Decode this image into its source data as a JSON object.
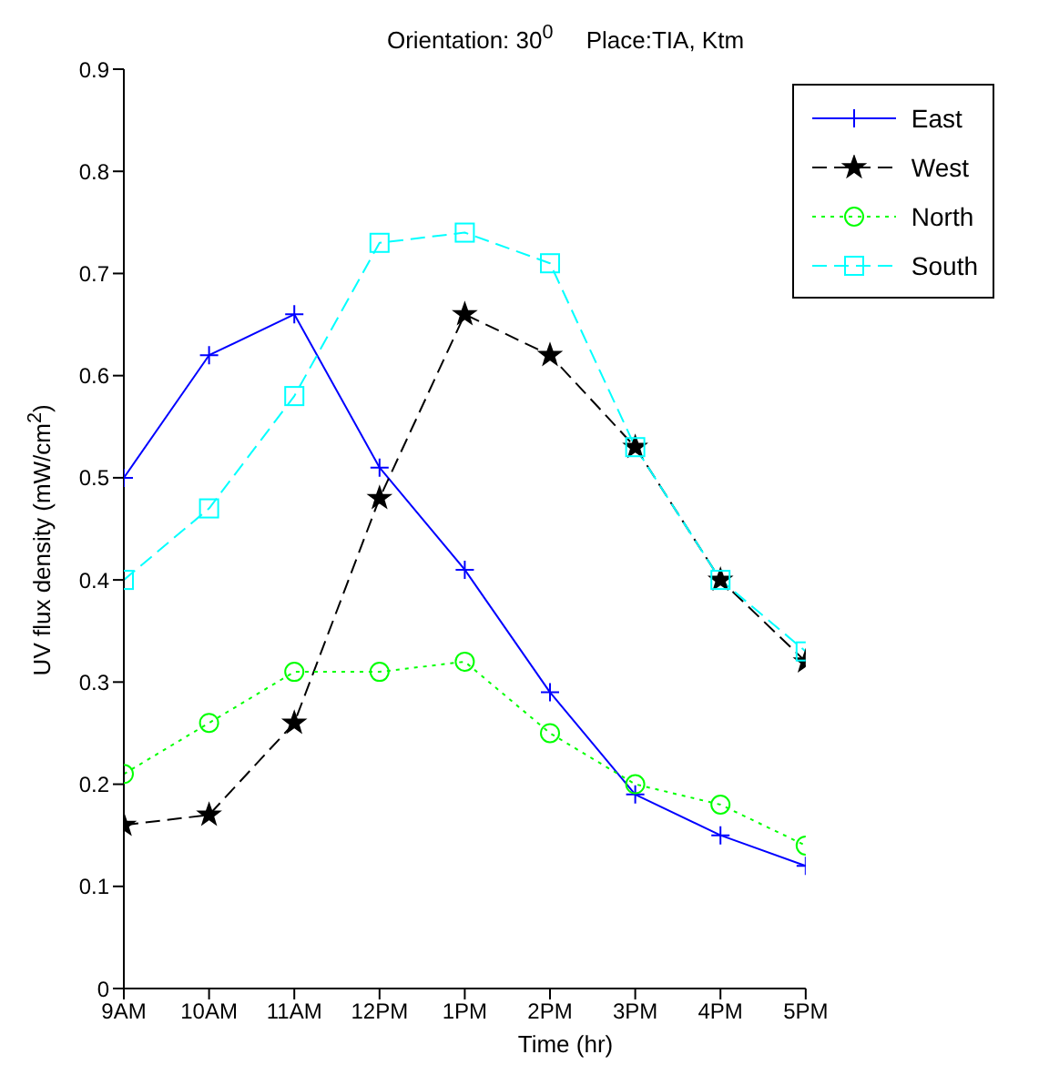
{
  "chart_data": {
    "type": "line",
    "title": "Orientation: 30$^{0}$     Place:TIA, Ktm",
    "xlabel": "Time (hr)",
    "ylabel": "UV flux density (mW/cm$^{2}$)",
    "categories": [
      "9AM",
      "10AM",
      "11AM",
      "12PM",
      "1PM",
      "2PM",
      "3PM",
      "4PM",
      "5PM"
    ],
    "series": [
      {
        "name": "East",
        "color": "#0000ff",
        "marker": "cross",
        "line_style": "solid",
        "values": [
          0.5,
          0.62,
          0.66,
          0.51,
          0.41,
          0.29,
          0.19,
          0.15,
          0.12
        ]
      },
      {
        "name": "West",
        "color": "#000000",
        "marker": "star",
        "line_style": "dashed",
        "values": [
          0.16,
          0.17,
          0.26,
          0.48,
          0.66,
          0.62,
          0.53,
          0.4,
          0.32
        ]
      },
      {
        "name": "North",
        "color": "#00ff00",
        "marker": "circle",
        "line_style": "dotted",
        "values": [
          0.21,
          0.26,
          0.31,
          0.31,
          0.32,
          0.25,
          0.2,
          0.18,
          0.14
        ]
      },
      {
        "name": "South",
        "color": "#00ffff",
        "marker": "square",
        "line_style": "dashed",
        "values": [
          0.4,
          0.47,
          0.58,
          0.73,
          0.74,
          0.71,
          0.53,
          0.4,
          0.33
        ]
      }
    ],
    "ylim": [
      0,
      0.9
    ],
    "yticks": [
      0,
      0.1,
      0.2,
      0.3,
      0.4,
      0.5,
      0.6,
      0.7,
      0.8,
      0.9
    ],
    "grid": false,
    "legend": "top right"
  }
}
